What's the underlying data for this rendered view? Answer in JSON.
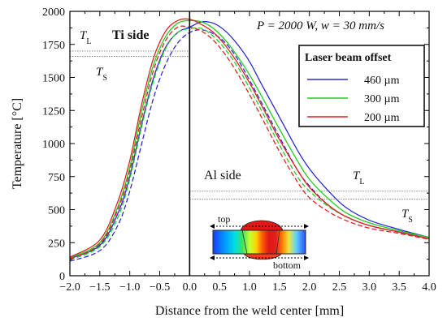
{
  "chart_data": {
    "type": "line",
    "xlabel": "Distance from the weld center  [mm]",
    "ylabel": "Temperature  [°C]",
    "xlim": [
      -2.0,
      4.0
    ],
    "ylim": [
      0,
      2000
    ],
    "x_ticks": [
      "−2.0",
      "−1.5",
      "−1.0",
      "−0.5",
      "0.0",
      "0.5",
      "1.0",
      "1.5",
      "2.0",
      "2.5",
      "3.0",
      "3.5",
      "4.0"
    ],
    "y_ticks": [
      "0",
      "250",
      "500",
      "750",
      "1000",
      "1250",
      "1500",
      "1750",
      "2000"
    ],
    "process_label": "P = 2000 W, w = 30 mm/s",
    "legend": {
      "title": "Laser beam offset",
      "placement": "top-right",
      "entries": [
        {
          "label": "460 µm",
          "color": "#2a2ad6"
        },
        {
          "label": "300 µm",
          "color": "#22cc22"
        },
        {
          "label": "200 µm",
          "color": "#dd2222"
        }
      ]
    },
    "annotations": {
      "ti_side": "Ti side",
      "al_side": "Al side",
      "ti_tl": "T_L",
      "ti_ts": "T_S",
      "al_tl": "T_L",
      "al_ts": "T_S",
      "inset_top": "top",
      "inset_bottom": "bottom"
    },
    "reference_lines": [
      {
        "name": "Ti liquidus",
        "y": 1700,
        "x_range": [
          -2.0,
          0.0
        ]
      },
      {
        "name": "Ti solidus",
        "y": 1660,
        "x_range": [
          -2.0,
          0.0
        ]
      },
      {
        "name": "Al liquidus",
        "y": 640,
        "x_range": [
          0.0,
          4.0
        ]
      },
      {
        "name": "Al solidus",
        "y": 580,
        "x_range": [
          0.0,
          4.0
        ]
      }
    ],
    "series": [
      {
        "group": "460 µm",
        "color": "#2a2ad6",
        "dashed": false,
        "x": [
          -2.0,
          -1.5,
          -1.2,
          -1.0,
          -0.8,
          -0.6,
          -0.4,
          -0.2,
          0.0,
          0.2,
          0.4,
          0.6,
          0.8,
          1.0,
          1.2,
          1.5,
          1.8,
          2.0,
          2.3,
          2.6,
          3.0,
          3.5,
          4.0
        ],
        "y": [
          130,
          230,
          470,
          750,
          1150,
          1500,
          1730,
          1840,
          1880,
          1920,
          1910,
          1850,
          1750,
          1620,
          1450,
          1200,
          950,
          810,
          650,
          520,
          420,
          350,
          290
        ]
      },
      {
        "group": "460 µm",
        "color": "#2a2ad6",
        "dashed": true,
        "x": [
          -2.0,
          -1.5,
          -1.2,
          -1.0,
          -0.8,
          -0.6,
          -0.4,
          -0.2,
          0.0,
          0.2,
          0.4,
          0.6,
          0.8,
          1.0,
          1.2,
          1.5,
          1.8,
          2.0,
          2.3,
          2.6,
          3.0,
          3.5,
          4.0
        ],
        "y": [
          110,
          190,
          380,
          640,
          1000,
          1350,
          1600,
          1760,
          1840,
          1860,
          1830,
          1760,
          1640,
          1480,
          1310,
          1050,
          800,
          680,
          540,
          450,
          380,
          330,
          280
        ]
      },
      {
        "group": "300 µm",
        "color": "#22cc22",
        "dashed": false,
        "x": [
          -2.0,
          -1.5,
          -1.2,
          -1.0,
          -0.8,
          -0.6,
          -0.4,
          -0.2,
          0.0,
          0.2,
          0.4,
          0.6,
          0.8,
          1.0,
          1.2,
          1.5,
          1.8,
          2.0,
          2.3,
          2.6,
          3.0,
          3.5,
          4.0
        ],
        "y": [
          135,
          250,
          520,
          820,
          1250,
          1600,
          1810,
          1910,
          1930,
          1920,
          1870,
          1780,
          1660,
          1520,
          1360,
          1110,
          870,
          730,
          590,
          480,
          400,
          340,
          290
        ]
      },
      {
        "group": "300 µm",
        "color": "#22cc22",
        "dashed": true,
        "x": [
          -2.0,
          -1.5,
          -1.2,
          -1.0,
          -0.8,
          -0.6,
          -0.4,
          -0.2,
          0.0,
          0.2,
          0.4,
          0.6,
          0.8,
          1.0,
          1.2,
          1.5,
          1.8,
          2.0,
          2.3,
          2.6,
          3.0,
          3.5,
          4.0
        ],
        "y": [
          120,
          220,
          440,
          730,
          1130,
          1480,
          1720,
          1840,
          1870,
          1870,
          1810,
          1710,
          1580,
          1420,
          1250,
          990,
          750,
          640,
          530,
          450,
          380,
          330,
          280
        ]
      },
      {
        "group": "200 µm",
        "color": "#dd2222",
        "dashed": false,
        "x": [
          -2.0,
          -1.5,
          -1.2,
          -1.0,
          -0.8,
          -0.6,
          -0.4,
          -0.2,
          0.0,
          0.2,
          0.4,
          0.6,
          0.8,
          1.0,
          1.2,
          1.5,
          1.8,
          2.0,
          2.3,
          2.6,
          3.0,
          3.5,
          4.0
        ],
        "y": [
          140,
          270,
          560,
          870,
          1300,
          1650,
          1850,
          1930,
          1940,
          1900,
          1840,
          1740,
          1610,
          1460,
          1290,
          1030,
          800,
          670,
          540,
          450,
          380,
          330,
          280
        ]
      },
      {
        "group": "200 µm",
        "color": "#dd2222",
        "dashed": true,
        "x": [
          -2.0,
          -1.5,
          -1.2,
          -1.0,
          -0.8,
          -0.6,
          -0.4,
          -0.2,
          0.0,
          0.2,
          0.4,
          0.6,
          0.8,
          1.0,
          1.2,
          1.5,
          1.8,
          2.0,
          2.3,
          2.6,
          3.0,
          3.5,
          4.0
        ],
        "y": [
          125,
          240,
          500,
          790,
          1200,
          1560,
          1780,
          1880,
          1880,
          1850,
          1780,
          1670,
          1530,
          1370,
          1200,
          940,
          710,
          590,
          490,
          420,
          360,
          320,
          275
        ]
      }
    ]
  }
}
